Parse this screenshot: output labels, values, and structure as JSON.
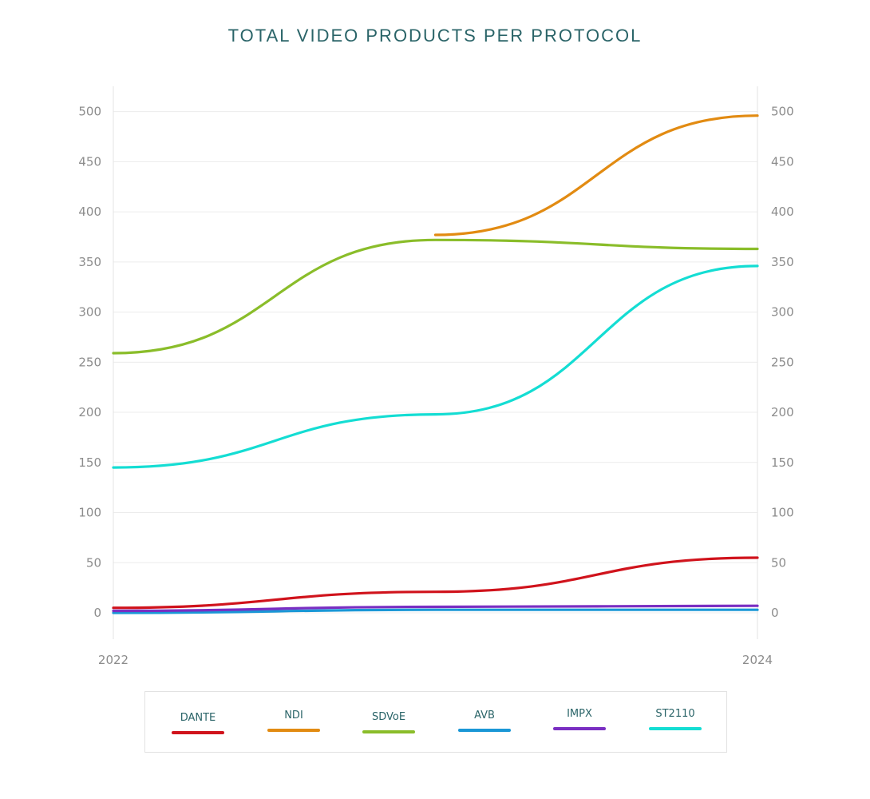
{
  "chart_data": {
    "type": "line",
    "title": "TOTAL VIDEO PRODUCTS PER PROTOCOL",
    "x_ticks": [
      "2022",
      "2024"
    ],
    "y_ticks": [
      "0",
      "50",
      "100",
      "150",
      "200",
      "250",
      "300",
      "350",
      "400",
      "450",
      "500"
    ],
    "xlim": [
      2022,
      2024
    ],
    "ylim": [
      -25,
      525
    ],
    "grid": true,
    "legend_position": "bottom",
    "series": [
      {
        "name": "DANTE",
        "color": "#d0131c",
        "x": [
          2022,
          2023,
          2024
        ],
        "values": [
          5,
          21,
          55
        ]
      },
      {
        "name": "NDI",
        "color": "#e28b12",
        "x": [
          2023,
          2024
        ],
        "values": [
          377,
          496
        ]
      },
      {
        "name": "SDVoE",
        "color": "#8abd2a",
        "x": [
          2022,
          2023,
          2024
        ],
        "values": [
          259,
          372,
          363
        ]
      },
      {
        "name": "AVB",
        "color": "#1a97d6",
        "x": [
          2022,
          2023,
          2024
        ],
        "values": [
          0,
          3,
          3
        ]
      },
      {
        "name": "IMPX",
        "color": "#7a2ec2",
        "x": [
          2022,
          2023,
          2024
        ],
        "values": [
          2,
          6,
          7
        ]
      },
      {
        "name": "ST2110",
        "color": "#14ddd3",
        "x": [
          2022,
          2023,
          2024
        ],
        "values": [
          145,
          198,
          346
        ]
      }
    ]
  }
}
